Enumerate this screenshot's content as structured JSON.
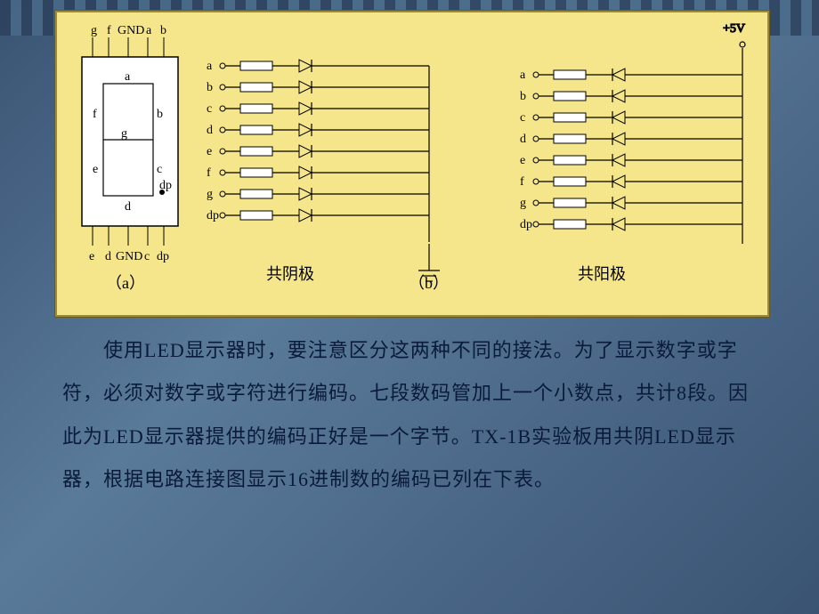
{
  "colors": {
    "diagram_bg": "#f5e68c",
    "stroke": "#000000",
    "seven_seg_bg": "#ffffff",
    "seven_seg_border": "#000000",
    "text": "#0a1a3a",
    "page_bg": "#4a6b8a"
  },
  "diagram": {
    "voltage_label": "+5V",
    "pin_module": {
      "top_pins": [
        "g",
        "f",
        "GND",
        "a",
        "b"
      ],
      "bottom_pins": [
        "e",
        "d",
        "GND",
        "c",
        "dp"
      ],
      "segments": {
        "a": "a",
        "b": "b",
        "c": "c",
        "d": "d",
        "e": "e",
        "f": "f",
        "g": "g",
        "dp": "dp"
      },
      "label": "（a）"
    },
    "common_cathode": {
      "rows": [
        "a",
        "b",
        "c",
        "d",
        "e",
        "f",
        "g",
        "dp"
      ],
      "title": "共阴极",
      "diode_direction": "right"
    },
    "common_anode": {
      "rows": [
        "a",
        "b",
        "c",
        "d",
        "e",
        "f",
        "g",
        "dp"
      ],
      "title": "共阳极",
      "diode_direction": "left"
    },
    "section_b_label": "（b）",
    "style": {
      "line_width": 1.2,
      "pin_circle_r": 3,
      "resistor_w": 36,
      "resistor_h": 10,
      "diode_size": 14,
      "row_spacing": 24,
      "font_size_label": 14,
      "font_size_cn": 18
    }
  },
  "body_text": "　　使用LED显示器时，要注意区分这两种不同的接法。为了显示数字或字符，必须对数字或字符进行编码。七段数码管加上一个小数点，共计8段。因此为LED显示器提供的编码正好是一个字节。TX-1B实验板用共阴LED显示器，根据电路连接图显示16进制数的编码已列在下表。"
}
